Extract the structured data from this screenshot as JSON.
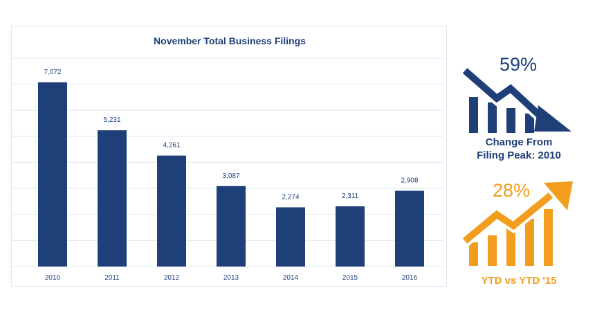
{
  "chart_data": {
    "type": "bar",
    "title": "November Total Business Filings",
    "categories": [
      "2010",
      "2011",
      "2012",
      "2013",
      "2014",
      "2015",
      "2016"
    ],
    "values": [
      7072,
      5231,
      4261,
      3087,
      2274,
      2311,
      2908
    ],
    "value_labels": [
      "7,072",
      "5,231",
      "4,261",
      "3,087",
      "2,274",
      "2,311",
      "2,908"
    ],
    "ylim": [
      0,
      8000
    ],
    "grid": true,
    "xlabel": "",
    "ylabel": ""
  },
  "colors": {
    "bar": "#1f3f78",
    "accent_blue": "#1f3f78",
    "accent_orange": "#f29d1e",
    "grid": "#dfe8f5"
  },
  "infographics": {
    "peak": {
      "percent": "59%",
      "caption_line1": "Change From",
      "caption_line2": "Filing Peak: 2010",
      "icon": "declining-bars-arrow-icon"
    },
    "ytd": {
      "percent": "28%",
      "caption": "YTD vs YTD '15",
      "icon": "rising-bars-arrow-icon"
    }
  }
}
